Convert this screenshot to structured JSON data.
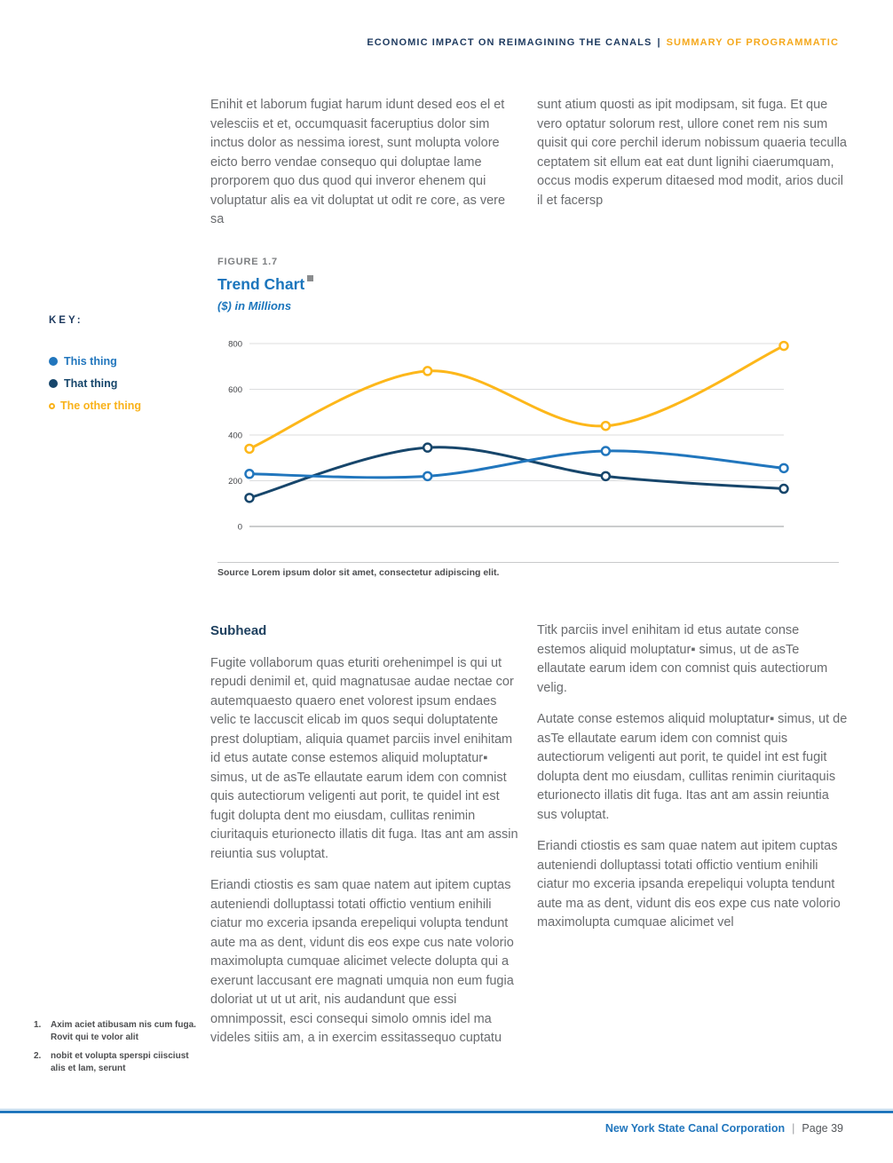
{
  "header": {
    "title": "ECONOMIC IMPACT ON REIMAGINING THE CANALS",
    "separator": "|",
    "section": "SUMMARY OF PROGRAMMATIC"
  },
  "intro": {
    "left": "Enihit et laborum fugiat harum idunt desed eos el et velesciis et et, occumquasit faceruptius dolor sim inctus dolor as nessima iorest, sunt molupta volore eicto berro vendae consequo qui doluptae lame prorporem quo dus quod qui inveror ehenem qui voluptatur alis ea vit doluptat ut odit re core, as vere sa",
    "right": "sunt atium quosti as ipit modipsam, sit fuga. Et que vero optatur solorum rest, ullore conet rem nis sum quisit qui core perchil iderum nobissum quaeria teculla ceptatem sit ellum eat eat dunt lignihi ciaerumquam, occus modis experum ditaesed mod modit, arios ducil il et facersp"
  },
  "figure": {
    "label": "FIGURE 1.7",
    "title": "Trend Chart",
    "subtitle": "($) in Millions",
    "source": "Source Lorem ipsum dolor sit amet, consectetur adipiscing elit."
  },
  "key": {
    "label": "KEY:",
    "items": [
      {
        "label": "This thing",
        "color": "#2176bd",
        "marker": "filled"
      },
      {
        "label": "That thing",
        "color": "#17466b",
        "marker": "filled"
      },
      {
        "label": "The other thing",
        "color": "#f9b21a",
        "marker": "open"
      }
    ]
  },
  "chart_data": {
    "type": "line",
    "title": "Trend Chart",
    "subtitle": "($) in Millions",
    "x": [
      0,
      1,
      2,
      3
    ],
    "series": [
      {
        "name": "This thing",
        "color": "#2176bd",
        "marker": "open",
        "values": [
          230,
          220,
          330,
          255
        ]
      },
      {
        "name": "That thing",
        "color": "#17466b",
        "marker": "open",
        "values": [
          125,
          345,
          220,
          165
        ]
      },
      {
        "name": "The other thing",
        "color": "#fdb71a",
        "marker": "open",
        "values": [
          340,
          680,
          440,
          790
        ]
      }
    ],
    "yticks": [
      0,
      200,
      400,
      600,
      800
    ],
    "ylim": [
      0,
      800
    ],
    "grid": true,
    "legend_position": "left",
    "x_axis_labels": []
  },
  "body": {
    "subhead": "Subhead",
    "left_paragraphs": [
      "Fugite vollaborum quas eturiti orehenimpel is qui ut repudi denimil et, quid magnatusae audae nectae cor autemquaesto quaero enet volorest ipsum endaes velic te laccuscit elicab im quos sequi doluptatente prest doluptiam, aliquia quamet parciis invel enihitam id etus autate conse estemos aliquid moluptatur▪ simus, ut de asTe ellautate earum idem con comnist quis autectiorum veligenti aut porit, te quidel int est fugit dolupta dent mo eiusdam, cullitas renimin ciuritaquis eturionecto illatis dit fuga. Itas ant am assin reiuntia sus voluptat.",
      "Eriandi ctiostis es sam quae natem aut ipitem cuptas auteniendi dolluptassi totati offictio ventium enihili ciatur mo exceria ipsanda erepeliqui volupta tendunt aute ma as dent, vidunt dis eos expe cus nate volorio maximolupta cumquae alicimet velecte dolupta qui a exerunt laccusant ere magnati umquia non eum fugia doloriat ut ut ut arit, nis audandunt que essi omnimpossit, esci consequi simolo omnis idel ma videles sitiis am, a in exercim essitassequo cuptatu"
    ],
    "right_paragraphs": [
      "Titk parciis invel enihitam id etus autate conse estemos aliquid moluptatur▪ simus, ut de asTe ellautate earum idem con comnist quis autectiorum velig.",
      "Autate conse estemos aliquid moluptatur▪ simus, ut de asTe ellautate earum idem con comnist quis autectiorum veligenti aut porit, te quidel int est fugit dolupta dent mo eiusdam, cullitas renimin ciuritaquis eturionecto illatis dit fuga. Itas ant am assin reiuntia sus voluptat.",
      "Eriandi ctiostis es sam quae natem aut ipitem cuptas auteniendi dolluptassi totati offictio ventium enihili ciatur mo exceria ipsanda erepeliqui volupta tendunt aute ma as dent, vidunt dis eos expe cus nate volorio maximolupta cumquae alicimet vel"
    ]
  },
  "footnotes": [
    {
      "number": "1.",
      "text": "Axim aciet atibusam nis cum fuga. Rovit qui te volor alit"
    },
    {
      "number": "2.",
      "text": "nobit et volupta sperspi ciisciust alis et lam, serunt"
    }
  ],
  "footer": {
    "org": "New York State Canal Corporation",
    "separator": "|",
    "page": "Page 39"
  },
  "colors": {
    "navy": "#1e3a5f",
    "orange_accent": "#f5a81c",
    "figure_blue": "#1b75bc",
    "body_gray": "#6a6c6f",
    "grid_gray": "#dcddde",
    "footer_blue": "#2277bd"
  }
}
